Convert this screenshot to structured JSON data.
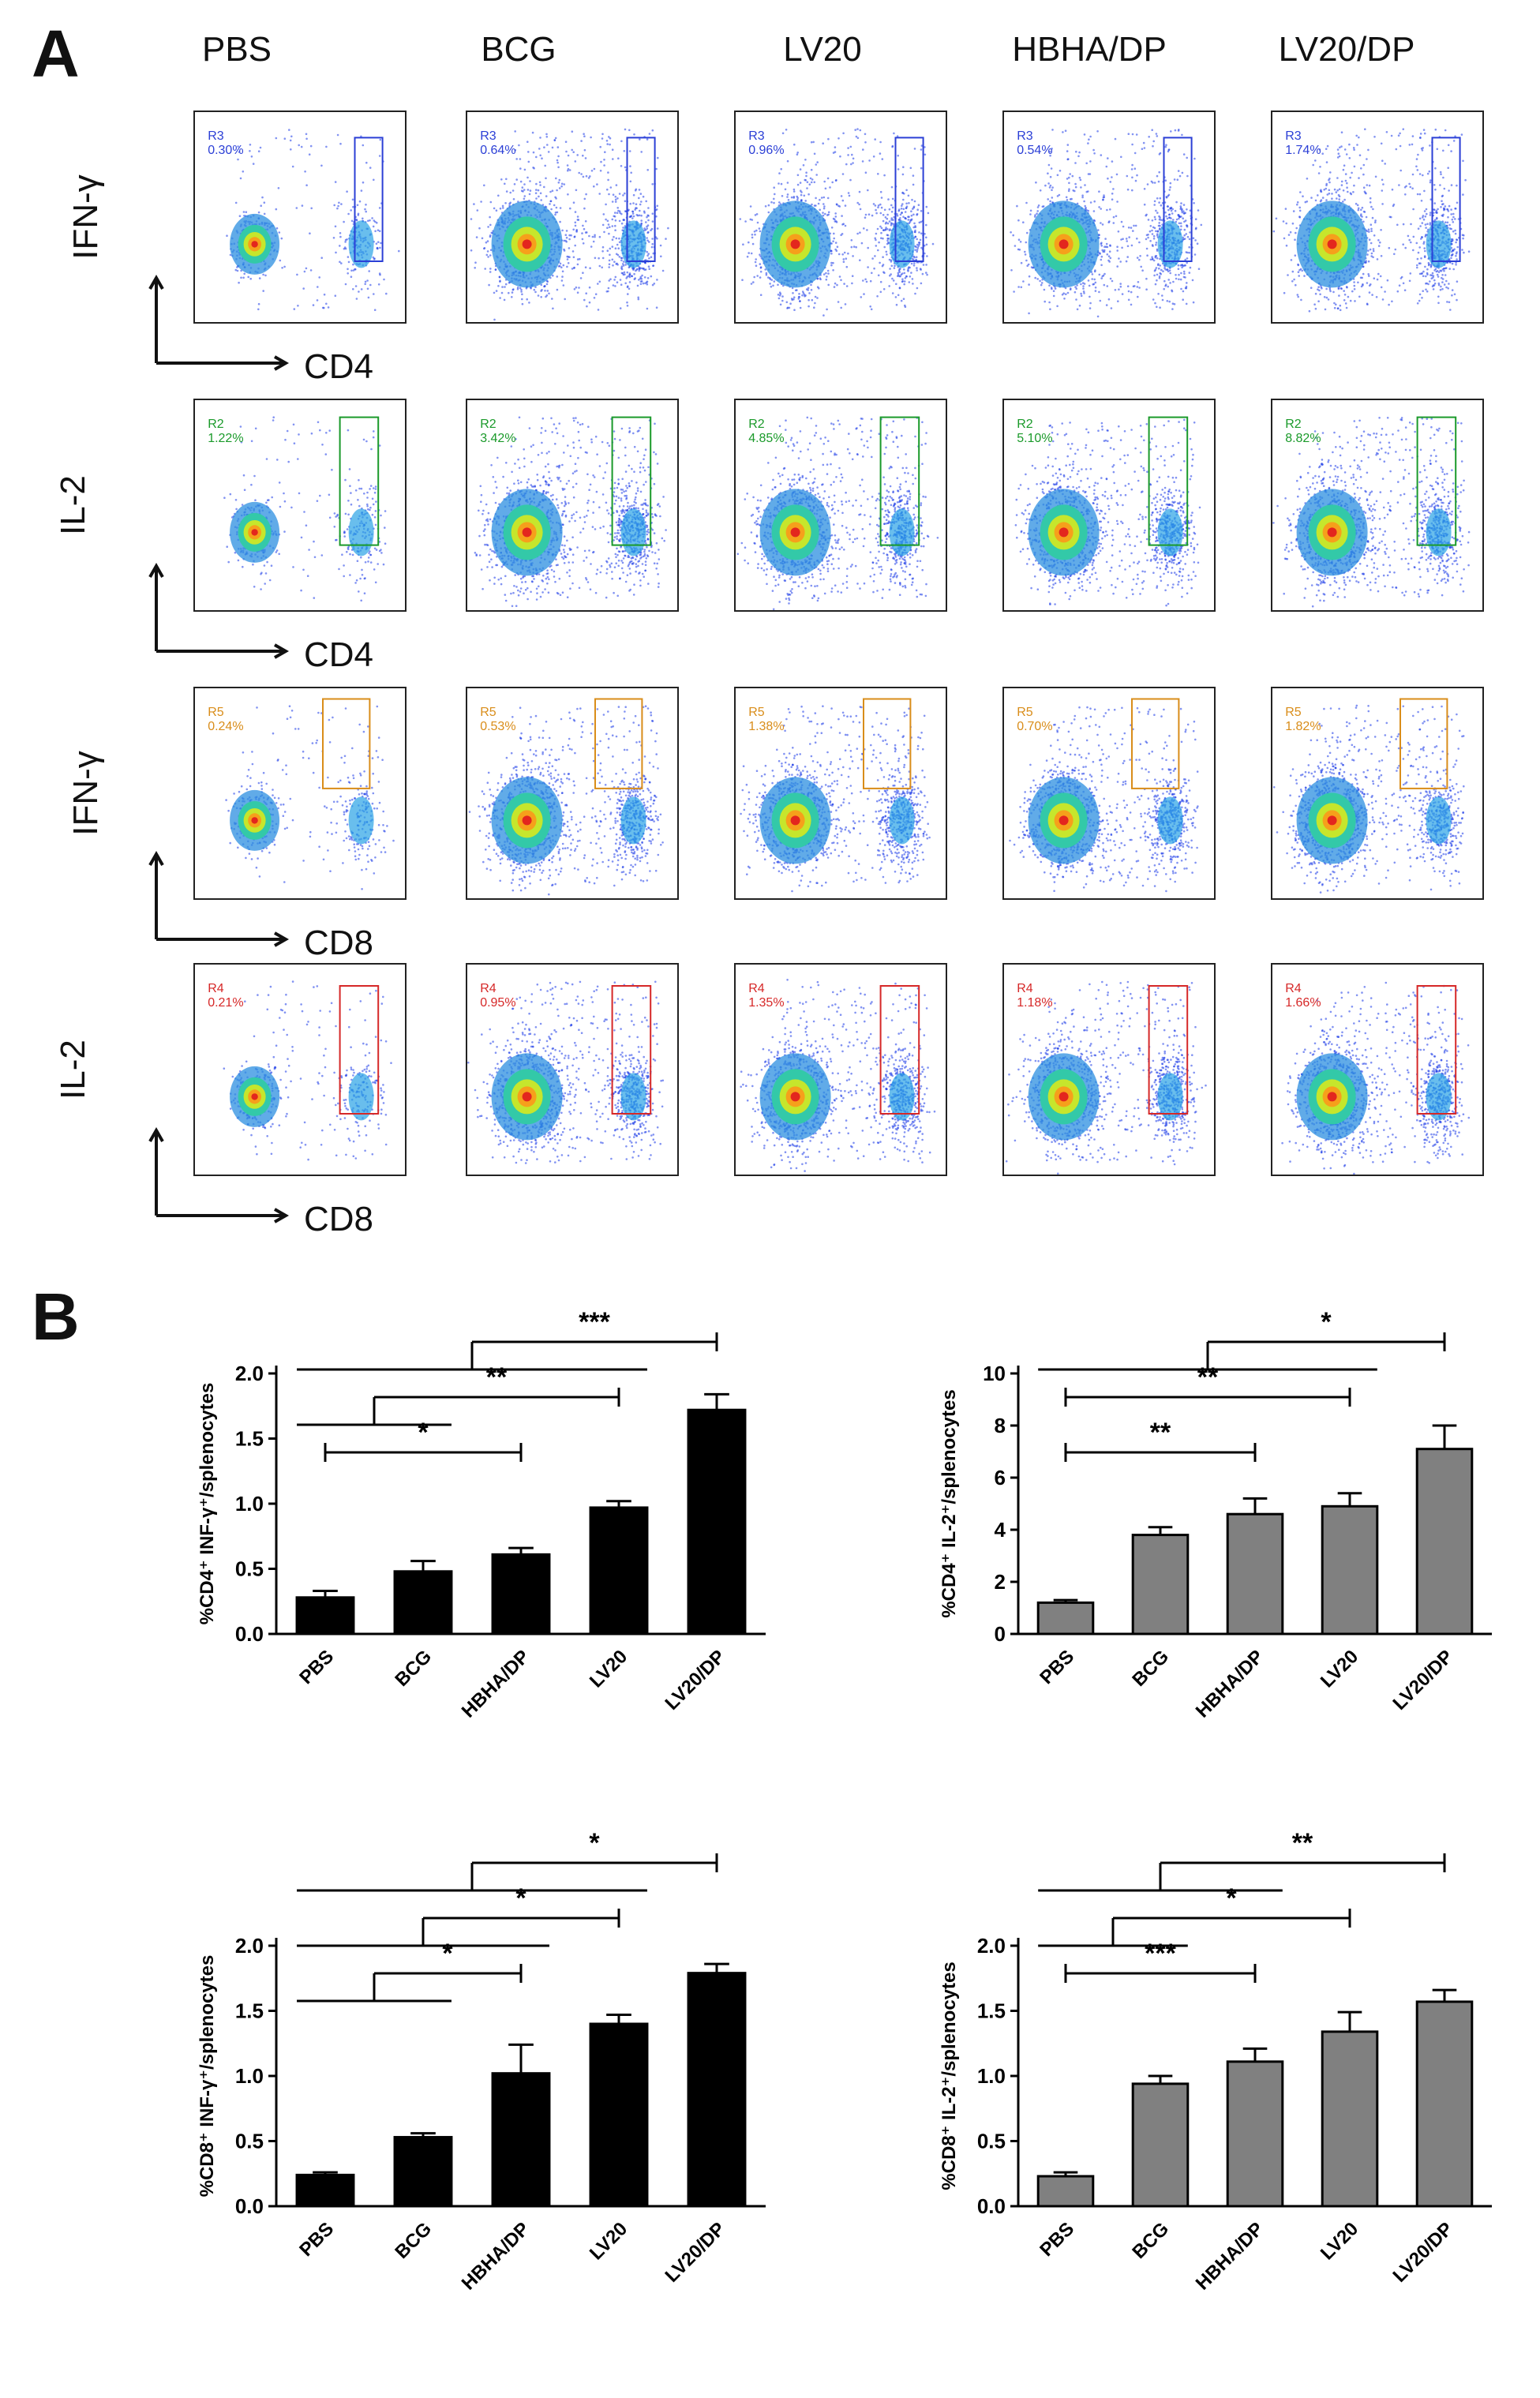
{
  "panel_labels": {
    "a": "A",
    "b": "B"
  },
  "flow": {
    "columns": [
      "PBS",
      "BCG",
      "LV20",
      "HBHA/DP",
      "LV20/DP"
    ],
    "rows": [
      {
        "y_marker": "IFN-γ",
        "x_marker": "CD4",
        "gate": "R3",
        "color": "#2b3fd6",
        "percents": [
          "0.30%",
          "0.64%",
          "0.96%",
          "0.54%",
          "1.74%"
        ]
      },
      {
        "y_marker": "IL-2",
        "x_marker": "CD4",
        "gate": "R2",
        "color": "#1a9a2a",
        "percents": [
          "1.22%",
          "3.42%",
          "4.85%",
          "5.10%",
          "8.82%"
        ]
      },
      {
        "y_marker": "IFN-γ",
        "x_marker": "CD8",
        "gate": "R5",
        "color": "#d98d1a",
        "percents": [
          "0.24%",
          "0.53%",
          "1.38%",
          "0.70%",
          "1.82%"
        ]
      },
      {
        "y_marker": "IL-2",
        "x_marker": "CD8",
        "gate": "R4",
        "color": "#d62828",
        "percents": [
          "0.21%",
          "0.95%",
          "1.35%",
          "1.18%",
          "1.66%"
        ]
      }
    ]
  },
  "chart_data": [
    {
      "type": "bar",
      "name": "cd4-ifng",
      "categories": [
        "PBS",
        "BCG",
        "HBHA/DP",
        "LV20",
        "LV20/DP"
      ],
      "values": [
        0.28,
        0.48,
        0.61,
        0.97,
        1.72
      ],
      "errors": [
        0.05,
        0.08,
        0.05,
        0.05,
        0.12
      ],
      "ylabel": "%CD4⁺ INF-γ⁺/splenocytes",
      "ylim": [
        0,
        2.0
      ],
      "ticks": [
        "0.0",
        "0.5",
        "1.0",
        "1.5",
        "2.0"
      ],
      "bar_color": "#000000",
      "significance": [
        {
          "from": "PBS",
          "to": "HBHA/DP",
          "stars": "*"
        },
        {
          "from": "PBS–BCG",
          "to": "LV20",
          "stars": "**"
        },
        {
          "from": "PBS–LV20",
          "to": "LV20/DP",
          "stars": "***"
        }
      ]
    },
    {
      "type": "bar",
      "name": "cd4-il2",
      "categories": [
        "PBS",
        "BCG",
        "HBHA/DP",
        "LV20",
        "LV20/DP"
      ],
      "values": [
        1.2,
        3.8,
        4.6,
        4.9,
        7.1
      ],
      "errors": [
        0.1,
        0.3,
        0.6,
        0.5,
        0.9
      ],
      "ylabel": "%CD4⁺ IL-2⁺/splenocytes",
      "ylim": [
        0,
        10
      ],
      "ticks": [
        "0",
        "2",
        "4",
        "6",
        "8",
        "10"
      ],
      "bar_color": "#808080",
      "significance": [
        {
          "from": "PBS",
          "to": "HBHA/DP",
          "stars": "**"
        },
        {
          "from": "PBS",
          "to": "LV20",
          "stars": "**"
        },
        {
          "from": "PBS–LV20",
          "to": "LV20/DP",
          "stars": "*"
        }
      ]
    },
    {
      "type": "bar",
      "name": "cd8-ifng",
      "categories": [
        "PBS",
        "BCG",
        "HBHA/DP",
        "LV20",
        "LV20/DP"
      ],
      "values": [
        0.24,
        0.53,
        1.02,
        1.4,
        1.79
      ],
      "errors": [
        0.02,
        0.03,
        0.22,
        0.07,
        0.07
      ],
      "ylabel": "%CD8⁺ INF-γ⁺/splenocytes",
      "ylim": [
        0,
        2.0
      ],
      "ticks": [
        "0.0",
        "0.5",
        "1.0",
        "1.5",
        "2.0"
      ],
      "bar_color": "#000000",
      "significance": [
        {
          "from": "PBS–BCG",
          "to": "HBHA/DP",
          "stars": "*"
        },
        {
          "from": "PBS–HBHA/DP",
          "to": "LV20",
          "stars": "*"
        },
        {
          "from": "PBS–LV20",
          "to": "LV20/DP",
          "stars": "*"
        }
      ]
    },
    {
      "type": "bar",
      "name": "cd8-il2",
      "categories": [
        "PBS",
        "BCG",
        "HBHA/DP",
        "LV20",
        "LV20/DP"
      ],
      "values": [
        0.23,
        0.94,
        1.11,
        1.34,
        1.57
      ],
      "errors": [
        0.03,
        0.06,
        0.1,
        0.15,
        0.09
      ],
      "ylabel": "%CD8⁺ IL-2⁺/splenocytes",
      "ylim": [
        0,
        2.0
      ],
      "ticks": [
        "0.0",
        "0.5",
        "1.0",
        "1.5",
        "2.0"
      ],
      "bar_color": "#808080",
      "significance": [
        {
          "from": "PBS",
          "to": "HBHA/DP",
          "stars": "***"
        },
        {
          "from": "PBS–BCG",
          "to": "LV20",
          "stars": "*"
        },
        {
          "from": "PBS–HBHA/DP",
          "to": "LV20/DP",
          "stars": "**"
        }
      ]
    }
  ]
}
